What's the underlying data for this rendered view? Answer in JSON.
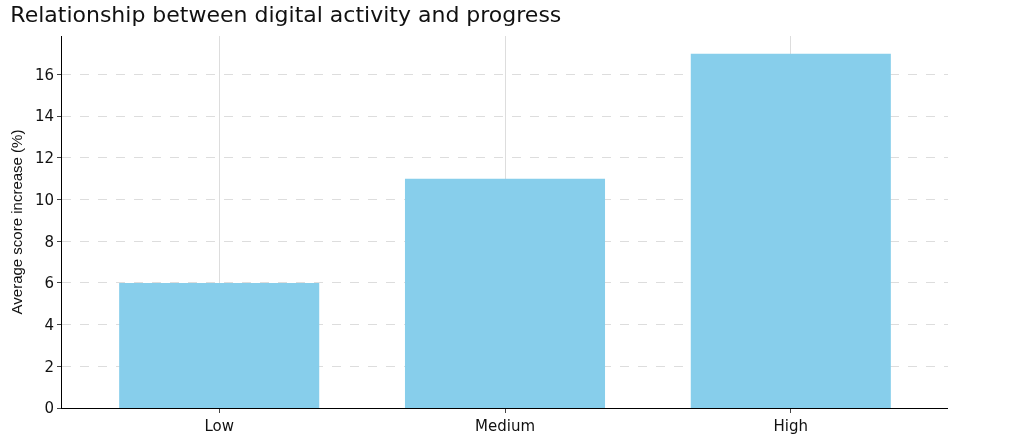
{
  "chart_data": {
    "type": "bar",
    "title": "Relationship between digital activity and progress",
    "ylabel": "Average score increase (%)",
    "categories": [
      "Low",
      "Medium",
      "High"
    ],
    "values": [
      6,
      11,
      17
    ],
    "color": "#87ceeb",
    "ylim": [
      0,
      17.85
    ],
    "yticks": [
      0,
      2,
      4,
      6,
      8,
      10,
      12,
      14,
      16
    ],
    "grid": true
  }
}
